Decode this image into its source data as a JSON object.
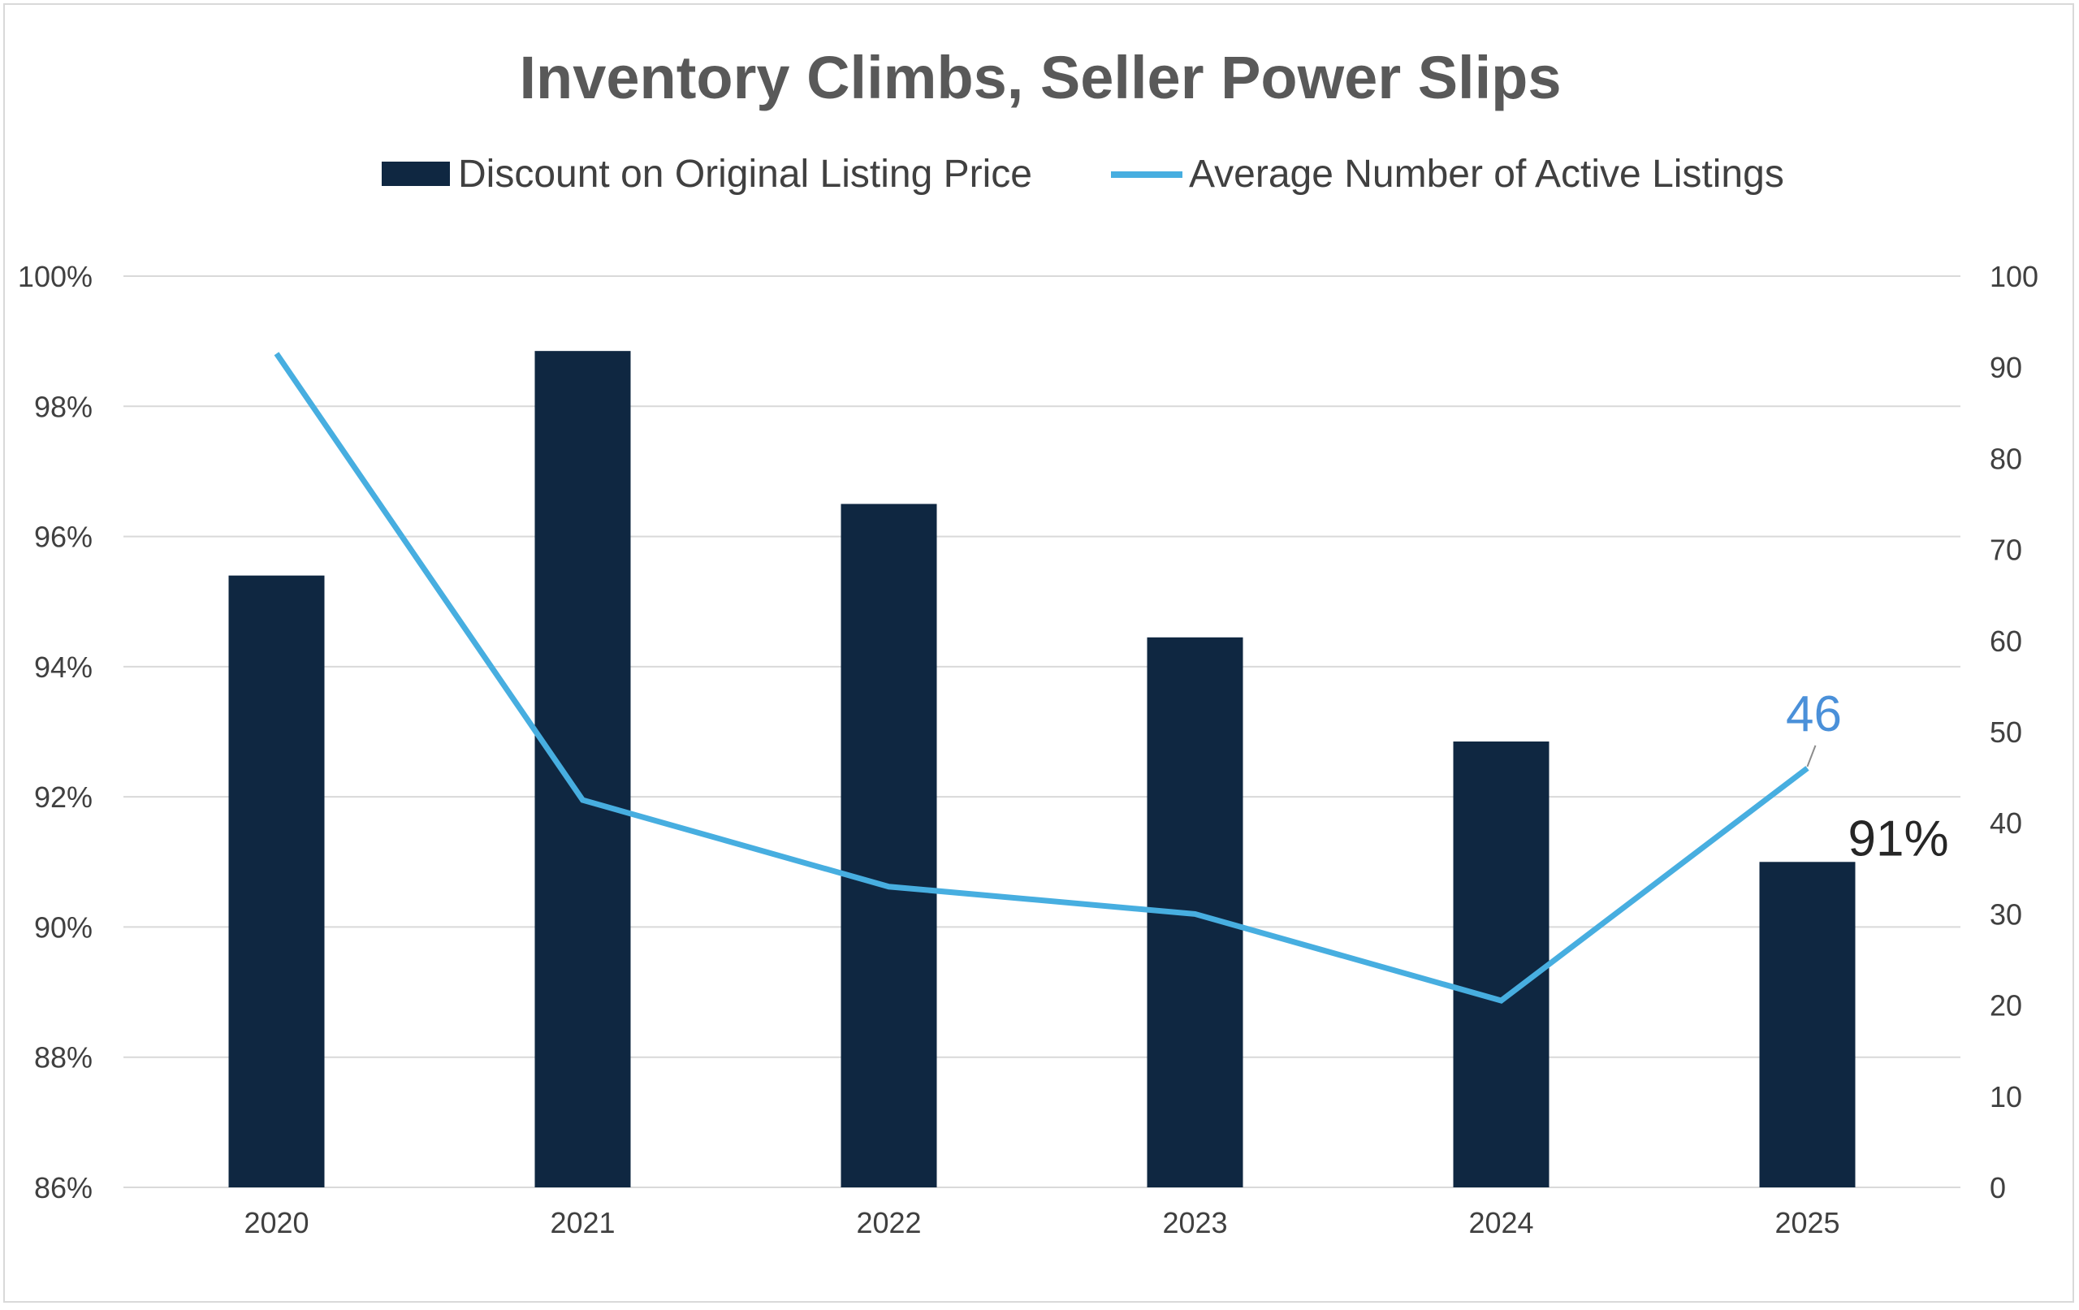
{
  "chart_data": {
    "type": "bar+line",
    "title": "Inventory Climbs, Seller Power Slips",
    "categories": [
      "2020",
      "2021",
      "2022",
      "2023",
      "2024",
      "2025"
    ],
    "series": [
      {
        "name": "Discount on Original Listing Price",
        "type": "bar",
        "axis": "left",
        "color": "#0f2741",
        "values": [
          95.4,
          98.85,
          96.5,
          94.45,
          92.85,
          91.0
        ],
        "data_labels": {
          "5": "91%"
        }
      },
      {
        "name": "Average Number of Active Listings",
        "type": "line",
        "axis": "right",
        "color": "#47aee0",
        "values": [
          91.5,
          42.5,
          33.0,
          30.0,
          20.5,
          46
        ],
        "data_labels": {
          "5": "46"
        }
      }
    ],
    "y_left": {
      "min": 86,
      "max": 100,
      "step": 2,
      "tick_labels": [
        "86%",
        "88%",
        "90%",
        "92%",
        "94%",
        "96%",
        "98%",
        "100%"
      ]
    },
    "y_right": {
      "min": 0,
      "max": 100,
      "step": 10,
      "tick_labels": [
        "0",
        "10",
        "20",
        "30",
        "40",
        "50",
        "60",
        "70",
        "80",
        "90",
        "100"
      ]
    },
    "grid": true,
    "legend": "top"
  }
}
